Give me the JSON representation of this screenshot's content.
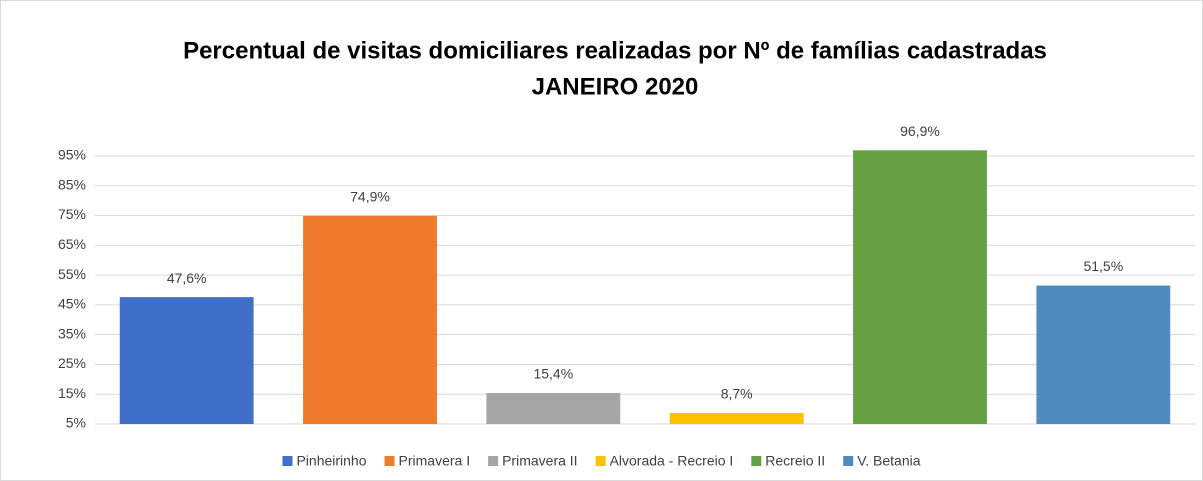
{
  "chart_data": {
    "type": "bar",
    "title": "Percentual de visitas domiciliares realizadas por Nº de famílias cadastradas",
    "subtitle": "JANEIRO 2020",
    "categories": [
      "Pinheirinho",
      "Primavera I",
      "Primavera II",
      "Alvorada - Recreio I",
      "Recreio II",
      "V. Betania"
    ],
    "values": [
      47.6,
      74.9,
      15.4,
      8.7,
      96.9,
      51.5
    ],
    "value_labels": [
      "47,6%",
      "74,9%",
      "15,4%",
      "8,7%",
      "96,9%",
      "51,5%"
    ],
    "colors": [
      "#3f6fc8",
      "#ee7a2c",
      "#a5a5a5",
      "#ffc000",
      "#65a043",
      "#4f8bc0"
    ],
    "ylim": [
      5,
      100
    ],
    "yticks": [
      {
        "value": 5,
        "label": "5%"
      },
      {
        "value": 15,
        "label": "15%"
      },
      {
        "value": 25,
        "label": "25%"
      },
      {
        "value": 35,
        "label": "35%"
      },
      {
        "value": 45,
        "label": "45%"
      },
      {
        "value": 55,
        "label": "55%"
      },
      {
        "value": 65,
        "label": "65%"
      },
      {
        "value": 75,
        "label": "75%"
      },
      {
        "value": 85,
        "label": "85%"
      },
      {
        "value": 95,
        "label": "95%"
      }
    ],
    "grid": true,
    "legend": "bottom"
  }
}
